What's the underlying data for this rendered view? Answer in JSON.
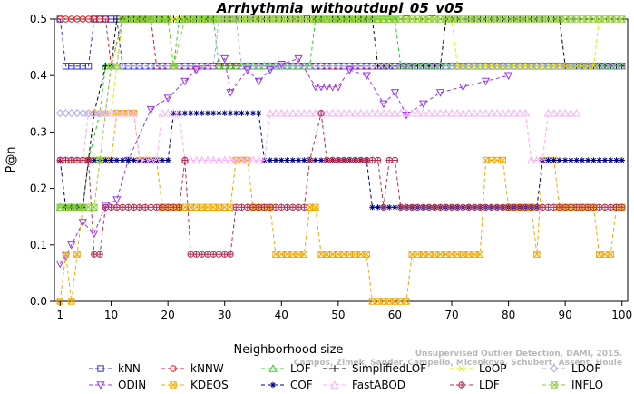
{
  "chart_data": {
    "type": "line",
    "title": "Arrhythmia_withoutdupl_05_v05",
    "xlabel": "Neighborhood size",
    "ylabel": "P@n",
    "xlim": [
      0,
      101
    ],
    "ylim": [
      0,
      0.5
    ],
    "x_ticks": [
      1,
      10,
      20,
      30,
      40,
      50,
      60,
      70,
      80,
      90,
      100
    ],
    "y_ticks": [
      0.0,
      0.1,
      0.2,
      0.3,
      0.4,
      0.5
    ],
    "y_tick_labels": [
      "0.0",
      "0.1",
      "0.2",
      "0.3",
      "0.4",
      "0.5"
    ],
    "grid": false,
    "legend_position": "bottom",
    "watermark": "Campos, Zimek, Sander, Campello, Micenkova, Schubert, Assent, Houle",
    "watermark_prefix": "Unsupervised Outlier Detection, DAMI, 2015.",
    "series": [
      {
        "name": "kNN",
        "color": "#3333cc",
        "marker": "square",
        "segments": [
          [
            1,
            0.5
          ],
          [
            2,
            0.4167
          ],
          [
            6,
            0.4167
          ],
          [
            7,
            0.5
          ],
          [
            11,
            0.5
          ],
          [
            12,
            0.4167
          ],
          [
            100,
            0.4167
          ]
        ]
      },
      {
        "name": "kNNW",
        "color": "#e31a1c",
        "marker": "circle",
        "segments": [
          [
            1,
            0.5
          ],
          [
            9,
            0.5
          ],
          [
            10,
            0.4167
          ],
          [
            12,
            0.5
          ],
          [
            17,
            0.5
          ],
          [
            18,
            0.4167
          ],
          [
            100,
            0.4167
          ]
        ]
      },
      {
        "name": "LOF",
        "color": "#33cc33",
        "marker": "triangle",
        "segments": [
          [
            1,
            0.1667
          ],
          [
            5,
            0.1667
          ],
          [
            6,
            0.25
          ],
          [
            8,
            0.3333
          ],
          [
            9,
            0.4167
          ],
          [
            11,
            0.4167
          ],
          [
            12,
            0.5
          ],
          [
            20,
            0.5
          ],
          [
            21,
            0.4167
          ],
          [
            22,
            0.5
          ],
          [
            28,
            0.5
          ],
          [
            29,
            0.4167
          ],
          [
            45,
            0.4167
          ],
          [
            46,
            0.5
          ],
          [
            60,
            0.5
          ],
          [
            61,
            0.4167
          ],
          [
            100,
            0.4167
          ]
        ]
      },
      {
        "name": "SimplifiedLOF",
        "color": "#000000",
        "marker": "plus",
        "segments": [
          [
            1,
            0.25
          ],
          [
            6,
            0.25
          ],
          [
            7,
            0.3333
          ],
          [
            9,
            0.4167
          ],
          [
            10,
            0.4167
          ],
          [
            11,
            0.5
          ],
          [
            56,
            0.5
          ],
          [
            57,
            0.4167
          ],
          [
            68,
            0.4167
          ],
          [
            69,
            0.5
          ],
          [
            89,
            0.5
          ],
          [
            90,
            0.4167
          ],
          [
            100,
            0.4167
          ]
        ]
      },
      {
        "name": "LoOP",
        "color": "#e6e600",
        "marker": "cross",
        "segments": [
          [
            1,
            0.25
          ],
          [
            5,
            0.25
          ],
          [
            6,
            0.3333
          ],
          [
            10,
            0.3333
          ],
          [
            11,
            0.4167
          ],
          [
            12,
            0.5
          ],
          [
            70,
            0.5
          ],
          [
            71,
            0.4167
          ],
          [
            95,
            0.4167
          ],
          [
            96,
            0.5
          ],
          [
            100,
            0.5
          ]
        ]
      },
      {
        "name": "LDOF",
        "color": "#aaaaee",
        "marker": "diamond",
        "segments": [
          [
            1,
            0.3333
          ],
          [
            9,
            0.3333
          ],
          [
            10,
            0.4167
          ],
          [
            28,
            0.4167
          ],
          [
            29,
            0.5
          ],
          [
            32,
            0.5
          ],
          [
            33,
            0.4167
          ],
          [
            100,
            0.4167
          ]
        ]
      },
      {
        "name": "ODIN",
        "color": "#9933ee",
        "marker": "triangle-down",
        "segments": [
          [
            1,
            0.0667
          ],
          [
            2,
            0.08
          ],
          [
            3,
            0.1
          ],
          [
            5,
            0.14
          ],
          [
            7,
            0.12
          ],
          [
            9,
            0.17
          ],
          [
            11,
            0.18
          ],
          [
            13,
            0.25
          ],
          [
            17,
            0.34
          ],
          [
            20,
            0.36
          ],
          [
            23,
            0.39
          ],
          [
            25,
            0.41
          ],
          [
            30,
            0.43
          ],
          [
            31,
            0.37
          ],
          [
            34,
            0.41
          ],
          [
            36,
            0.39
          ],
          [
            38,
            0.41
          ],
          [
            40,
            0.42
          ],
          [
            43,
            0.43
          ],
          [
            46,
            0.38
          ],
          [
            50,
            0.38
          ],
          [
            52,
            0.41
          ],
          [
            55,
            0.4
          ],
          [
            58,
            0.35
          ],
          [
            60,
            0.37
          ],
          [
            62,
            0.33
          ],
          [
            65,
            0.35
          ],
          [
            68,
            0.37
          ],
          [
            72,
            0.38
          ],
          [
            76,
            0.39
          ],
          [
            80,
            0.4
          ]
        ]
      },
      {
        "name": "KDEOS",
        "color": "#f0a800",
        "marker": "box-x",
        "segments": [
          [
            1,
            0.0
          ],
          [
            2,
            0.0833
          ],
          [
            3,
            0.0
          ],
          [
            4,
            0.0833
          ],
          [
            5,
            0.1667
          ],
          [
            6,
            0.25
          ],
          [
            10,
            0.25
          ],
          [
            11,
            0.3333
          ],
          [
            14,
            0.3333
          ],
          [
            15,
            0.25
          ],
          [
            18,
            0.25
          ],
          [
            19,
            0.1667
          ],
          [
            31,
            0.1667
          ],
          [
            32,
            0.25
          ],
          [
            34,
            0.25
          ],
          [
            35,
            0.1667
          ],
          [
            38,
            0.1667
          ],
          [
            39,
            0.0833
          ],
          [
            44,
            0.0833
          ],
          [
            45,
            0.1667
          ],
          [
            46,
            0.1667
          ],
          [
            47,
            0.0833
          ],
          [
            55,
            0.0833
          ],
          [
            56,
            0.0
          ],
          [
            62,
            0.0
          ],
          [
            63,
            0.0833
          ],
          [
            75,
            0.0833
          ],
          [
            76,
            0.25
          ],
          [
            79,
            0.25
          ],
          [
            80,
            0.1667
          ],
          [
            84,
            0.1667
          ],
          [
            85,
            0.0833
          ],
          [
            86,
            0.25
          ],
          [
            88,
            0.25
          ],
          [
            89,
            0.1667
          ],
          [
            95,
            0.1667
          ],
          [
            96,
            0.0833
          ],
          [
            98,
            0.0833
          ],
          [
            99,
            0.1667
          ],
          [
            100,
            0.1667
          ]
        ]
      },
      {
        "name": "COF",
        "color": "#000080",
        "marker": "asterisk",
        "segments": [
          [
            1,
            0.25
          ],
          [
            2,
            0.1667
          ],
          [
            5,
            0.1667
          ],
          [
            6,
            0.25
          ],
          [
            20,
            0.25
          ],
          [
            21,
            0.3333
          ],
          [
            36,
            0.3333
          ],
          [
            37,
            0.25
          ],
          [
            55,
            0.25
          ],
          [
            56,
            0.1667
          ],
          [
            85,
            0.1667
          ],
          [
            86,
            0.25
          ],
          [
            100,
            0.25
          ]
        ]
      },
      {
        "name": "FastABOD",
        "color": "#ffaaff",
        "marker": "triangle",
        "segments": [
          [
            1,
            0.25
          ],
          [
            5,
            0.25
          ],
          [
            6,
            0.3333
          ],
          [
            14,
            0.3333
          ],
          [
            15,
            0.25
          ],
          [
            18,
            0.25
          ],
          [
            19,
            0.3333
          ],
          [
            22,
            0.3333
          ],
          [
            23,
            0.25
          ],
          [
            37,
            0.25
          ],
          [
            38,
            0.3333
          ],
          [
            83,
            0.3333
          ],
          [
            84,
            0.25
          ],
          [
            86,
            0.25
          ],
          [
            87,
            0.3333
          ],
          [
            92,
            0.3333
          ]
        ]
      },
      {
        "name": "LDF",
        "color": "#b03050",
        "marker": "circle-plus",
        "segments": [
          [
            1,
            0.25
          ],
          [
            6,
            0.25
          ],
          [
            7,
            0.0833
          ],
          [
            8,
            0.0833
          ],
          [
            9,
            0.1667
          ],
          [
            22,
            0.1667
          ],
          [
            23,
            0.25
          ],
          [
            24,
            0.0833
          ],
          [
            31,
            0.0833
          ],
          [
            32,
            0.1667
          ],
          [
            44,
            0.1667
          ],
          [
            45,
            0.25
          ],
          [
            47,
            0.3333
          ],
          [
            48,
            0.25
          ],
          [
            57,
            0.25
          ],
          [
            58,
            0.1667
          ],
          [
            59,
            0.25
          ],
          [
            60,
            0.25
          ],
          [
            61,
            0.1667
          ],
          [
            100,
            0.1667
          ]
        ]
      },
      {
        "name": "INFLO",
        "color": "#88cc33",
        "marker": "box-x",
        "segments": [
          [
            1,
            0.1667
          ],
          [
            7,
            0.1667
          ],
          [
            8,
            0.25
          ],
          [
            10,
            0.4167
          ],
          [
            12,
            0.5
          ],
          [
            20,
            0.5
          ],
          [
            21,
            0.4167
          ],
          [
            23,
            0.5
          ],
          [
            100,
            0.5
          ]
        ]
      }
    ]
  }
}
